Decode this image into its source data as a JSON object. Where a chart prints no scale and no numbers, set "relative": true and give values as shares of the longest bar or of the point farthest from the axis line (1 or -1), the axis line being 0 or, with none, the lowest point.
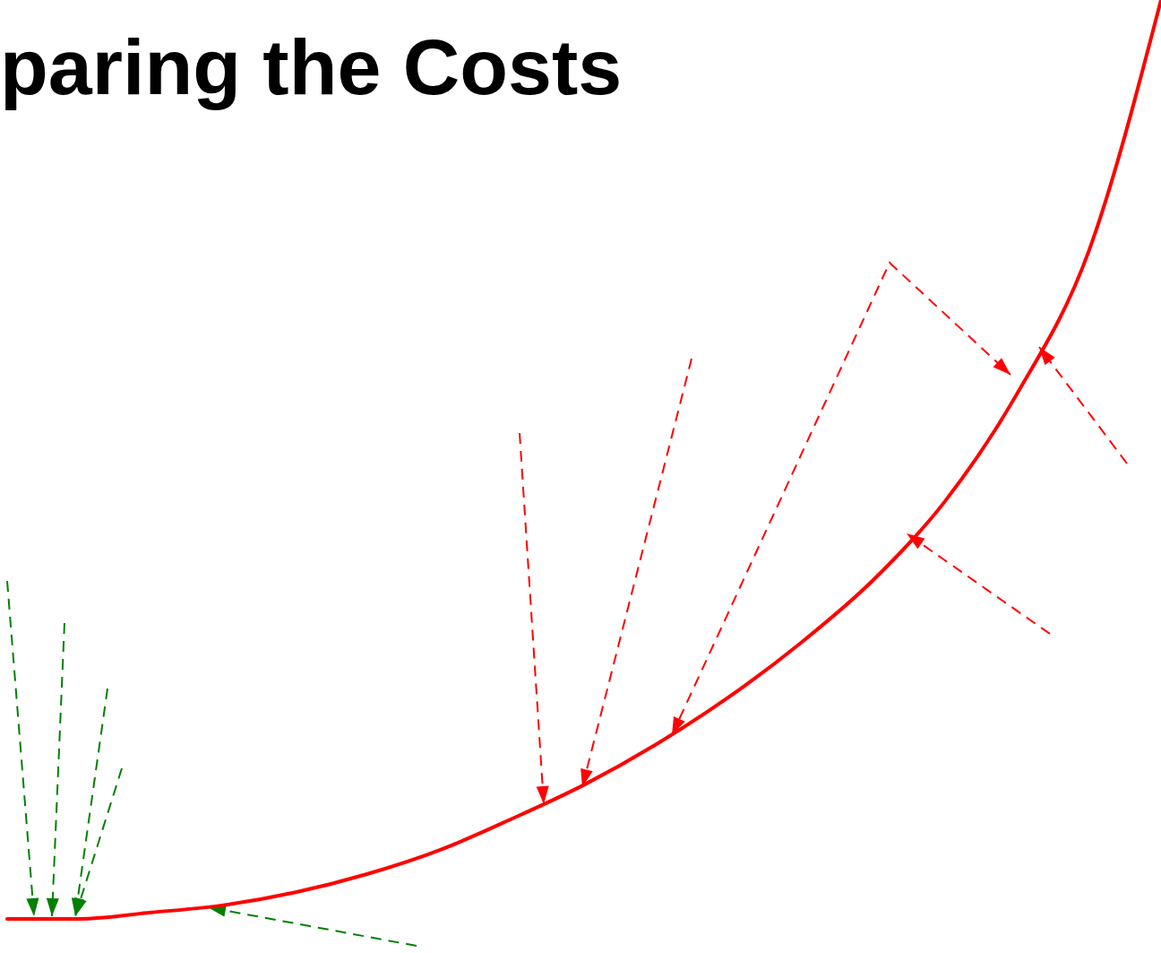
{
  "chart_data": {
    "type": "line",
    "title": "paring the Costs",
    "relative": true,
    "categories": [
      null,
      null,
      null,
      null,
      null,
      null,
      null,
      null,
      null,
      null,
      null,
      null,
      null,
      null,
      null,
      null,
      null
    ],
    "series": [
      {
        "color": "#ff0000",
        "values": [
          0,
          0,
          0.007,
          0.015,
          0.029,
          0.049,
          0.075,
          0.109,
          0.146,
          0.19,
          0.241,
          0.3,
          0.368,
          0.454,
          0.571,
          0.727,
          1
        ]
      }
    ],
    "marker": "none",
    "line_style": "solid"
  }
}
